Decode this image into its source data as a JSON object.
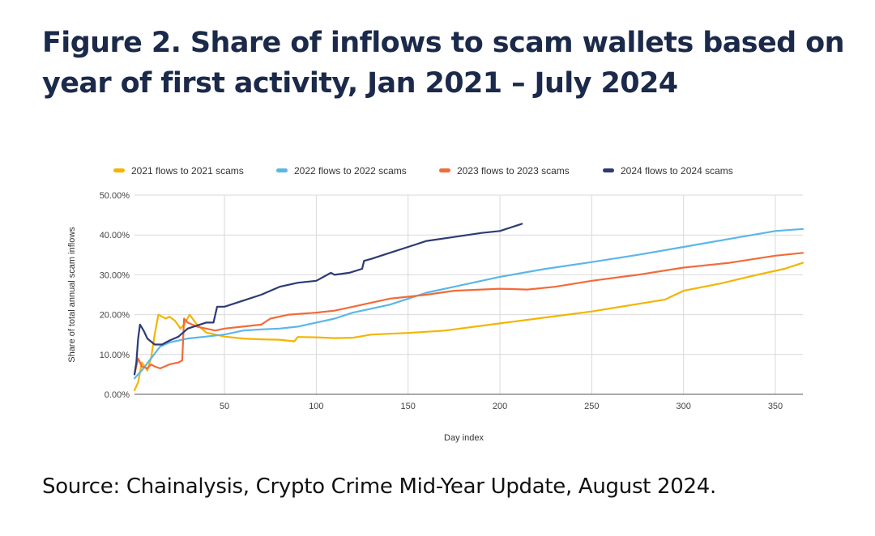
{
  "figure": {
    "title": "Figure 2. Share of inflows to scam wallets based on year of first activity, Jan 2021 – July 2024",
    "source": "Source: Chainalysis, Crypto Crime Mid-Year Update, August 2024."
  },
  "chart_data": {
    "type": "line",
    "title": "",
    "xlabel": "Day index",
    "ylabel": "Share of total annual scam inflows",
    "xlim": [
      1,
      365
    ],
    "ylim": [
      0,
      50
    ],
    "x_ticks": [
      50,
      100,
      150,
      200,
      250,
      300,
      350
    ],
    "y_ticks": [
      0,
      10,
      20,
      30,
      40,
      50
    ],
    "y_tick_labels": [
      "0.00%",
      "10.00%",
      "20.00%",
      "30.00%",
      "40.00%",
      "50.00%"
    ],
    "grid": true,
    "legend_position": "top",
    "series": [
      {
        "name": "2021 flows to 2021 scams",
        "color": "#f4b400",
        "x": [
          1,
          3,
          5,
          8,
          10,
          12,
          14,
          16,
          18,
          20,
          23,
          26,
          28,
          31,
          35,
          40,
          45,
          50,
          60,
          70,
          80,
          88,
          90,
          100,
          110,
          120,
          130,
          150,
          170,
          200,
          220,
          250,
          270,
          290,
          300,
          320,
          340,
          355,
          365
        ],
        "values": [
          1,
          3,
          8,
          6,
          9,
          15,
          20,
          19.5,
          19,
          19.5,
          18.5,
          16.5,
          17.5,
          20,
          17.5,
          15.5,
          15,
          14.5,
          14,
          13.8,
          13.7,
          13.3,
          14.4,
          14.3,
          14.1,
          14.2,
          15,
          15.4,
          16,
          17.8,
          19,
          20.8,
          22.3,
          23.8,
          26,
          27.8,
          30,
          31.5,
          33
        ]
      },
      {
        "name": "2022 flows to 2022 scams",
        "color": "#5bb6e8",
        "x": [
          1,
          5,
          10,
          15,
          20,
          30,
          40,
          50,
          60,
          70,
          80,
          90,
          100,
          110,
          120,
          130,
          140,
          150,
          160,
          175,
          200,
          225,
          250,
          275,
          300,
          325,
          350,
          365
        ],
        "values": [
          4,
          6,
          9,
          12,
          13,
          14,
          14.5,
          15,
          16,
          16.3,
          16.5,
          17,
          18,
          19,
          20.5,
          21.5,
          22.5,
          24,
          25.5,
          27,
          29.5,
          31.5,
          33.2,
          35,
          37,
          39,
          41,
          41.5
        ]
      },
      {
        "name": "2023 flows to 2023 scams",
        "color": "#f26b38",
        "x": [
          1,
          3,
          5,
          8,
          10,
          12,
          15,
          20,
          25,
          27,
          28,
          30,
          35,
          40,
          45,
          50,
          60,
          70,
          75,
          85,
          100,
          110,
          120,
          130,
          140,
          150,
          160,
          175,
          200,
          215,
          230,
          250,
          275,
          300,
          325,
          350,
          365
        ],
        "values": [
          5,
          9,
          7,
          6.5,
          7.5,
          7,
          6.5,
          7.5,
          8,
          8.5,
          19,
          18,
          17,
          16.5,
          16,
          16.5,
          17,
          17.5,
          19,
          20,
          20.5,
          21,
          22,
          23,
          24,
          24.5,
          25,
          26,
          26.5,
          26.3,
          27,
          28.5,
          30,
          31.8,
          33,
          34.8,
          35.5
        ]
      },
      {
        "name": "2024 flows to 2024 scams",
        "color": "#2e3a74",
        "x": [
          1,
          2,
          3,
          4,
          6,
          8,
          12,
          16,
          20,
          25,
          30,
          40,
          44,
          46,
          50,
          60,
          70,
          80,
          90,
          100,
          108,
          110,
          118,
          125,
          126,
          130,
          140,
          150,
          160,
          175,
          190,
          200,
          210,
          212
        ],
        "values": [
          5,
          8,
          14,
          17.5,
          16,
          14,
          12.5,
          12.5,
          13.5,
          14.5,
          16.5,
          18,
          18,
          22,
          22,
          23.5,
          25,
          27,
          28,
          28.5,
          30.5,
          30,
          30.5,
          31.5,
          33.5,
          34,
          35.5,
          37,
          38.5,
          39.5,
          40.5,
          41,
          42.5,
          42.8
        ]
      }
    ]
  }
}
